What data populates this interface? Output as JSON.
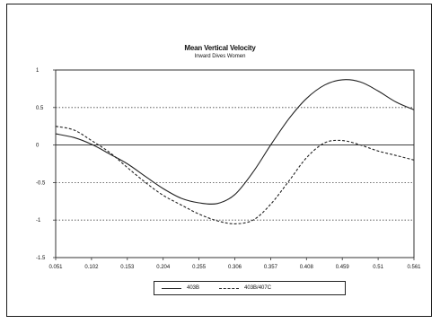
{
  "chart_data": {
    "type": "line",
    "title": "Mean Vertical Velocity",
    "subtitle": "Inward Dives   Women",
    "xlabel": "",
    "ylabel": "",
    "x_tick_labels": [
      "0.051",
      "0.102",
      "0.153",
      "0.204",
      "0.255",
      "0.306",
      "0.357",
      "0.408",
      "0.459",
      "0.51",
      "0.561"
    ],
    "y_tick_labels": [
      "1",
      "0.5",
      "0",
      "-0.5",
      "-1",
      "-1.5"
    ],
    "xlim": [
      0.051,
      0.561
    ],
    "ylim": [
      -1.5,
      1
    ],
    "grid": "horizontal dotted at 0.5, -0.5, -1; solid zero line",
    "legend_position": "bottom",
    "series": [
      {
        "name": "403B",
        "style": "solid",
        "color": "#222222",
        "x": [
          0.051,
          0.077,
          0.102,
          0.128,
          0.153,
          0.179,
          0.204,
          0.23,
          0.255,
          0.281,
          0.306,
          0.332,
          0.357,
          0.383,
          0.408,
          0.434,
          0.459,
          0.485,
          0.51,
          0.536,
          0.561
        ],
        "y": [
          0.15,
          0.1,
          0.01,
          -0.12,
          -0.25,
          -0.42,
          -0.58,
          -0.71,
          -0.77,
          -0.78,
          -0.66,
          -0.36,
          0.0,
          0.35,
          0.62,
          0.8,
          0.87,
          0.84,
          0.72,
          0.57,
          0.47
        ]
      },
      {
        "name": "403B/407C",
        "style": "dashed",
        "color": "#222222",
        "x": [
          0.051,
          0.077,
          0.102,
          0.128,
          0.153,
          0.179,
          0.204,
          0.23,
          0.255,
          0.281,
          0.306,
          0.332,
          0.357,
          0.383,
          0.408,
          0.434,
          0.459,
          0.485,
          0.51,
          0.536,
          0.561
        ],
        "y": [
          0.25,
          0.2,
          0.06,
          -0.1,
          -0.3,
          -0.5,
          -0.67,
          -0.8,
          -0.92,
          -1.01,
          -1.05,
          -1.0,
          -0.79,
          -0.48,
          -0.17,
          0.03,
          0.06,
          0.0,
          -0.08,
          -0.14,
          -0.2
        ]
      }
    ]
  }
}
